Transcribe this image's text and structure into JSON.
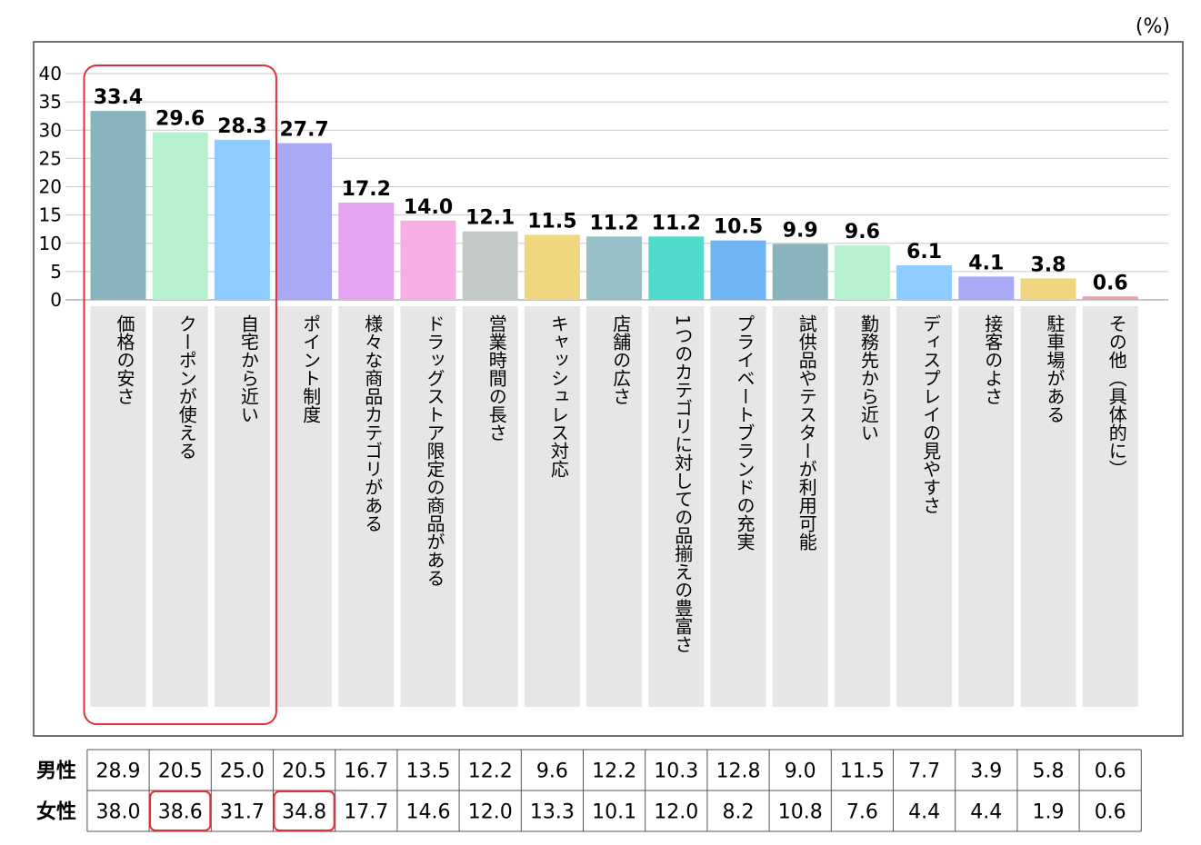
{
  "chart_data": {
    "type": "bar",
    "unit": "(%)",
    "ylim": [
      0,
      40
    ],
    "yticks": [
      0,
      5,
      10,
      15,
      20,
      25,
      30,
      35,
      40
    ],
    "grid": true,
    "categories": [
      "価格の安さ",
      "クーポンが使える",
      "自宅から近い",
      "ポイント制度",
      "様々な商品カテゴリがある",
      "ドラッグストア限定の商品がある",
      "営業時間の長さ",
      "キャッシュレス対応",
      "店舗の広さ",
      "1つのカテゴリに対しての品揃えの豊富さ",
      "プライベートブランドの充実",
      "試供品やテスターが利用可能",
      "勤務先から近い",
      "ディスプレイの見やすさ",
      "接客のよさ",
      "駐車場がある",
      "その他（具体的に）"
    ],
    "values": [
      33.4,
      29.6,
      28.3,
      27.7,
      17.2,
      14.0,
      12.1,
      11.5,
      11.2,
      11.2,
      10.5,
      9.9,
      9.6,
      6.1,
      4.1,
      3.8,
      0.6
    ],
    "value_labels": [
      "33.4",
      "29.6",
      "28.3",
      "27.7",
      "17.2",
      "14.0",
      "12.1",
      "11.5",
      "11.2",
      "11.2",
      "10.5",
      "9.9",
      "9.6",
      "6.1",
      "4.1",
      "3.8",
      "0.6"
    ],
    "bar_colors": [
      "#8ab4bd",
      "#b6f0cc",
      "#8ecbff",
      "#a7a9f7",
      "#e4a3ef",
      "#f7aee3",
      "#c3c9c5",
      "#f0d67e",
      "#96c0c8",
      "#4fdccd",
      "#6eb5f4",
      "#8ab4bd",
      "#b6f0cc",
      "#8ecbff",
      "#a7a9f7",
      "#f0d67e",
      "#e2a3a8"
    ],
    "highlight_bar_group": [
      0,
      1,
      2
    ],
    "highlight_color": "#e0303a",
    "table": {
      "rows": [
        {
          "label": "男性",
          "values": [
            "28.9",
            "20.5",
            "25.0",
            "20.5",
            "16.7",
            "13.5",
            "12.2",
            "9.6",
            "12.2",
            "10.3",
            "12.8",
            "9.0",
            "11.5",
            "7.7",
            "3.9",
            "5.8",
            "0.6"
          ]
        },
        {
          "label": "女性",
          "values": [
            "38.0",
            "38.6",
            "31.7",
            "34.8",
            "17.7",
            "14.6",
            "12.0",
            "13.3",
            "10.1",
            "12.0",
            "8.2",
            "10.8",
            "7.6",
            "4.4",
            "4.4",
            "1.9",
            "0.6"
          ]
        }
      ],
      "highlight_cells": [
        [
          1,
          1
        ],
        [
          1,
          3
        ]
      ]
    }
  }
}
